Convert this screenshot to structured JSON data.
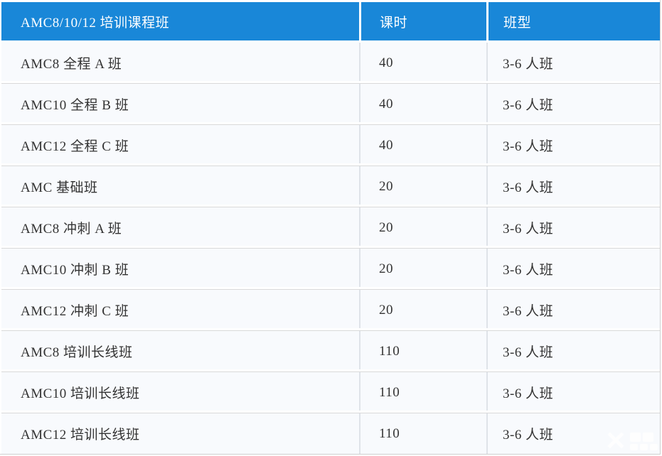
{
  "table": {
    "header": {
      "course": "AMC8/10/12 培训课程班",
      "hours": "课时",
      "class_type": "班型"
    },
    "rows": [
      {
        "course": "AMC8 全程 A 班",
        "hours": "40",
        "class_type": "3-6 人班"
      },
      {
        "course": "AMC10 全程 B 班",
        "hours": "40",
        "class_type": "3-6 人班"
      },
      {
        "course": "AMC12 全程 C 班",
        "hours": "40",
        "class_type": "3-6 人班"
      },
      {
        "course": "AMC 基础班",
        "hours": "20",
        "class_type": "3-6 人班"
      },
      {
        "course": "AMC8 冲刺 A 班",
        "hours": "20",
        "class_type": "3-6 人班"
      },
      {
        "course": "AMC10 冲刺 B 班",
        "hours": "20",
        "class_type": "3-6 人班"
      },
      {
        "course": "AMC12 冲刺 C 班",
        "hours": "20",
        "class_type": "3-6 人班"
      },
      {
        "course": "AMC8 培训长线班",
        "hours": "110",
        "class_type": "3-6 人班"
      },
      {
        "course": "AMC10 培训长线班",
        "hours": "110",
        "class_type": "3-6 人班"
      },
      {
        "course": "AMC12 培训长线班",
        "hours": "110",
        "class_type": "3-6 人班"
      }
    ]
  },
  "watermark": {
    "glyph": "✕"
  },
  "colors": {
    "header_bg": "#1987d8",
    "header_text": "#ffffff",
    "row_bg": "#f8fafd",
    "row_text": "#333333",
    "divider": "#d9d9d9",
    "outer_border": "#cfcfcf"
  }
}
